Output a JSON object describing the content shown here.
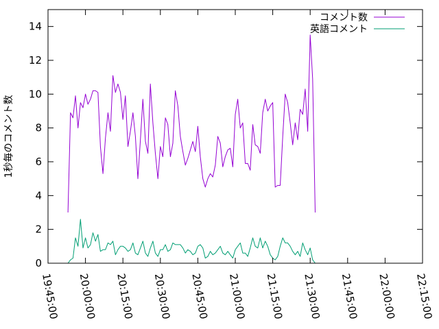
{
  "chart_data": {
    "type": "line",
    "title": "",
    "xlabel": "",
    "ylabel": "1秒毎のコメント数",
    "ylim": [
      0,
      15
    ],
    "yticks": [
      0,
      2,
      4,
      6,
      8,
      10,
      12,
      14
    ],
    "xlim": [
      "19:45:00",
      "22:15:00"
    ],
    "xticks": [
      "19:45:00",
      "20:00:00",
      "20:15:00",
      "20:30:00",
      "20:45:00",
      "21:00:00",
      "21:15:00",
      "21:30:00",
      "21:45:00",
      "22:00:00",
      "22:15:00"
    ],
    "x_step": "00:01:00",
    "x_start": "19:53:00",
    "grid": false,
    "legend_position": "top-right",
    "series": [
      {
        "name": "コメント数",
        "color": "#9400D3",
        "values": [
          3.0,
          8.9,
          8.6,
          9.9,
          8.0,
          9.5,
          9.2,
          10.0,
          9.4,
          9.7,
          10.2,
          10.2,
          10.1,
          6.9,
          5.3,
          7.4,
          8.9,
          7.8,
          11.1,
          10.1,
          10.6,
          10.1,
          8.5,
          9.9,
          6.9,
          7.8,
          8.9,
          7.5,
          5.0,
          7.3,
          9.7,
          7.2,
          6.5,
          10.6,
          8.3,
          6.5,
          5.0,
          6.9,
          6.3,
          8.6,
          8.2,
          6.3,
          7.1,
          10.2,
          9.3,
          7.5,
          6.6,
          5.8,
          6.2,
          6.7,
          7.2,
          6.6,
          8.1,
          6.3,
          5.0,
          4.5,
          5.0,
          5.3,
          5.1,
          5.8,
          7.5,
          7.1,
          5.7,
          6.3,
          6.7,
          6.8,
          5.7,
          8.8,
          9.7,
          8.0,
          8.3,
          5.9,
          5.9,
          5.5,
          8.2,
          7.0,
          6.9,
          6.5,
          8.9,
          9.7,
          9.0,
          9.3,
          9.5,
          4.5,
          4.6,
          4.6,
          7.5,
          10.0,
          9.5,
          8.3,
          7.0,
          8.3,
          7.3,
          9.1,
          8.8,
          10.3,
          7.8,
          13.5,
          10.9,
          3.0
        ]
      },
      {
        "name": "英語コメント",
        "color": "#009E73",
        "values": [
          0.0,
          0.2,
          0.3,
          1.5,
          1.0,
          2.6,
          0.9,
          1.5,
          0.9,
          1.1,
          1.8,
          1.3,
          1.7,
          0.7,
          0.8,
          0.8,
          1.2,
          1.1,
          1.3,
          0.5,
          0.8,
          1.0,
          1.0,
          0.9,
          0.7,
          0.8,
          1.2,
          0.6,
          0.5,
          0.9,
          1.3,
          0.6,
          0.4,
          0.9,
          1.3,
          0.6,
          0.4,
          0.8,
          0.8,
          1.1,
          0.7,
          0.8,
          1.2,
          1.1,
          1.1,
          1.1,
          0.9,
          0.6,
          0.8,
          0.7,
          0.5,
          0.6,
          1.0,
          1.1,
          0.9,
          0.3,
          0.4,
          0.7,
          0.5,
          0.6,
          0.8,
          1.0,
          0.6,
          0.5,
          0.7,
          0.5,
          0.3,
          0.8,
          1.0,
          1.2,
          0.6,
          0.6,
          0.4,
          0.9,
          1.5,
          1.0,
          0.9,
          1.5,
          0.9,
          1.3,
          1.0,
          0.5,
          0.3,
          0.2,
          0.4,
          1.0,
          1.5,
          1.2,
          1.2,
          1.0,
          0.7,
          0.5,
          0.7,
          0.4,
          1.2,
          0.8,
          0.5,
          0.9,
          0.2,
          0.0
        ]
      }
    ]
  }
}
